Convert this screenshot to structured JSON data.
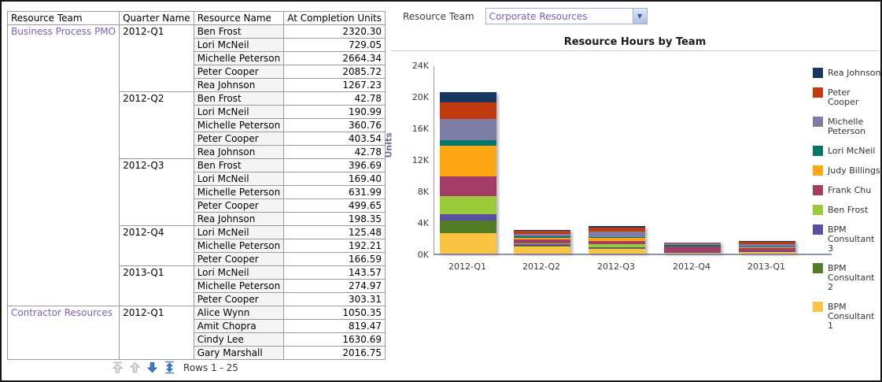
{
  "filter": {
    "label": "Resource Team",
    "value": "Corporate Resources"
  },
  "report": {
    "headers": [
      "Resource Team",
      "Quarter Name",
      "Resource Name",
      "At Completion Units"
    ],
    "groups": [
      {
        "team": "Business Process PMO",
        "quarters": [
          {
            "quarter": "2012-Q1",
            "rows": [
              {
                "name": "Ben Frost",
                "units": "2320.30"
              },
              {
                "name": "Lori McNeil",
                "units": "729.05"
              },
              {
                "name": "Michelle Peterson",
                "units": "2664.34"
              },
              {
                "name": "Peter Cooper",
                "units": "2085.72"
              },
              {
                "name": "Rea Johnson",
                "units": "1267.23"
              }
            ]
          },
          {
            "quarter": "2012-Q2",
            "rows": [
              {
                "name": "Ben Frost",
                "units": "42.78"
              },
              {
                "name": "Lori McNeil",
                "units": "190.99"
              },
              {
                "name": "Michelle Peterson",
                "units": "360.76"
              },
              {
                "name": "Peter Cooper",
                "units": "403.54"
              },
              {
                "name": "Rea Johnson",
                "units": "42.78"
              }
            ]
          },
          {
            "quarter": "2012-Q3",
            "rows": [
              {
                "name": "Ben Frost",
                "units": "396.69"
              },
              {
                "name": "Lori McNeil",
                "units": "169.40"
              },
              {
                "name": "Michelle Peterson",
                "units": "631.99"
              },
              {
                "name": "Peter Cooper",
                "units": "499.65"
              },
              {
                "name": "Rea Johnson",
                "units": "198.35"
              }
            ]
          },
          {
            "quarter": "2012-Q4",
            "rows": [
              {
                "name": "Lori McNeil",
                "units": "125.48"
              },
              {
                "name": "Michelle Peterson",
                "units": "192.21"
              },
              {
                "name": "Peter Cooper",
                "units": "166.59"
              }
            ]
          },
          {
            "quarter": "2013-Q1",
            "rows": [
              {
                "name": "Lori McNeil",
                "units": "143.57"
              },
              {
                "name": "Michelle Peterson",
                "units": "274.97"
              },
              {
                "name": "Peter Cooper",
                "units": "303.31"
              }
            ]
          }
        ]
      },
      {
        "team": "Contractor Resources",
        "quarters": [
          {
            "quarter": "2012-Q1",
            "rows": [
              {
                "name": "Alice Wynn",
                "units": "1050.35"
              },
              {
                "name": "Amit Chopra",
                "units": "819.47"
              },
              {
                "name": "Cindy Lee",
                "units": "1630.69"
              },
              {
                "name": "Gary Marshall",
                "units": "2016.75"
              }
            ]
          }
        ]
      }
    ],
    "pagination": {
      "label": "Rows 1 - 25"
    }
  },
  "chart_data": {
    "type": "bar",
    "stacked": true,
    "title": "Resource Hours by Team",
    "ylabel": "Units",
    "categories": [
      "2012-Q1",
      "2012-Q2",
      "2012-Q3",
      "2012-Q4",
      "2013-Q1"
    ],
    "y_ticks": [
      "0K",
      "4K",
      "8K",
      "12K",
      "16K",
      "20K",
      "24K"
    ],
    "ylim": [
      0,
      24000
    ],
    "legend_position": "right",
    "series_bottom_to_top": [
      {
        "name": "BPM Consultant 1",
        "color": "#FBC543",
        "values": [
          2600,
          900,
          650,
          60,
          200
        ]
      },
      {
        "name": "BPM Consultant 2",
        "color": "#507D25",
        "values": [
          1600,
          60,
          60,
          70,
          40
        ]
      },
      {
        "name": "BPM Consultant 3",
        "color": "#5C4E9E",
        "values": [
          800,
          250,
          90,
          100,
          80
        ]
      },
      {
        "name": "Ben Frost",
        "color": "#9BCB3D",
        "values": [
          2320.3,
          42.78,
          396.69,
          0,
          0
        ]
      },
      {
        "name": "Frank Chu",
        "color": "#A33C66",
        "values": [
          2500,
          550,
          400,
          650,
          430
        ]
      },
      {
        "name": "Judy Billings",
        "color": "#FBA612",
        "values": [
          3900,
          160,
          370,
          60,
          60
        ]
      },
      {
        "name": "Lori McNeil",
        "color": "#02756D",
        "values": [
          729.05,
          190.99,
          169.4,
          125.48,
          143.57
        ]
      },
      {
        "name": "Michelle Peterson",
        "color": "#7C7CA5",
        "values": [
          2664.34,
          360.76,
          631.99,
          192.21,
          274.97
        ]
      },
      {
        "name": "Peter Cooper",
        "color": "#C33A10",
        "values": [
          2085.72,
          403.54,
          499.65,
          166.59,
          303.31
        ]
      },
      {
        "name": "Rea Johnson",
        "color": "#17375E",
        "values": [
          1267.23,
          42.78,
          198.35,
          0,
          60
        ]
      }
    ]
  },
  "icons": {
    "scroll_top": "scroll-to-top-arrow",
    "scroll_up": "scroll-up-arrow",
    "scroll_down": "scroll-down-arrow",
    "scroll_all": "expand-all-arrows",
    "select_chevron": "▼"
  },
  "colors": {
    "link_purple": "#7a5fb0",
    "pager_blue": "#3f7fd1",
    "pager_gray": "#d9d9d9",
    "axis_line": "#8792ad"
  }
}
